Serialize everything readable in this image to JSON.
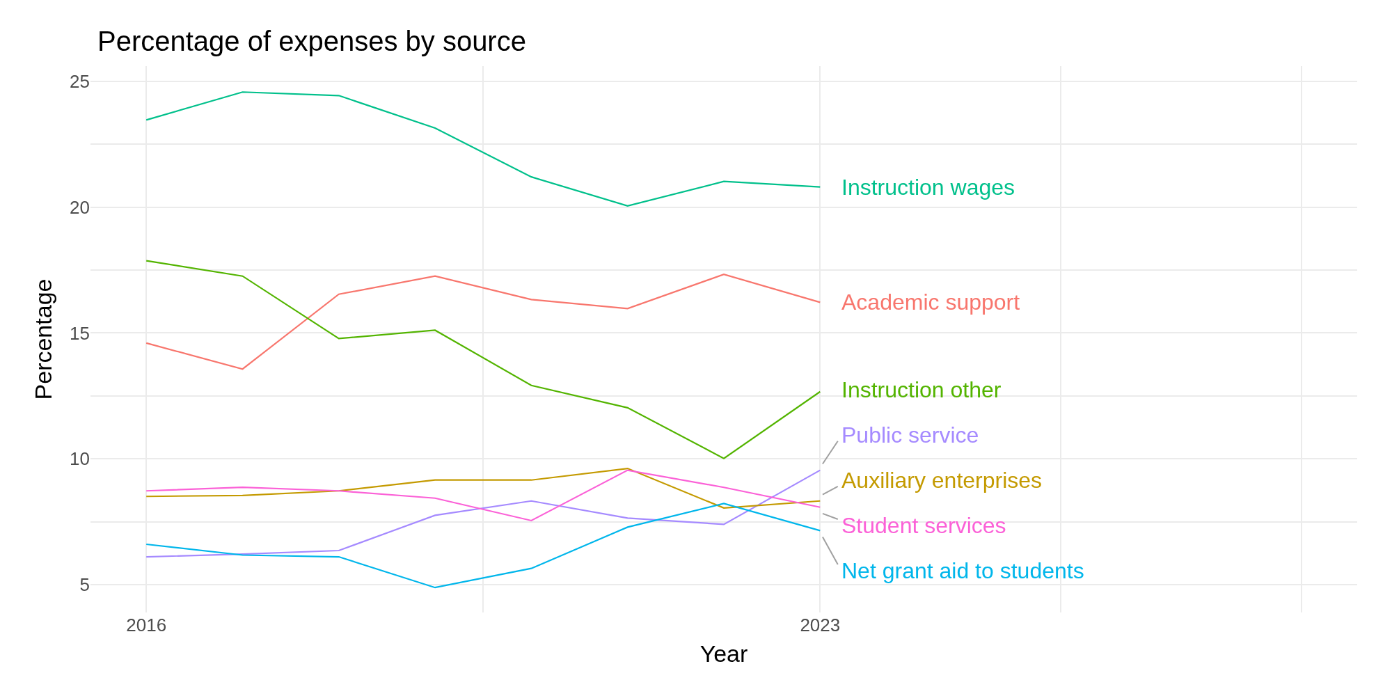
{
  "chart_data": {
    "type": "line",
    "title": "Percentage of expenses by source",
    "xlabel": "Year",
    "ylabel": "Percentage",
    "x": [
      2016,
      2017,
      2018,
      2019,
      2020,
      2021,
      2022,
      2023
    ],
    "series": [
      {
        "name": "Instruction wages",
        "color": "#00c08b",
        "values": [
          23.46,
          24.57,
          24.43,
          23.14,
          21.2,
          20.05,
          21.02,
          20.8
        ]
      },
      {
        "name": "Academic support",
        "color": "#f8766d",
        "values": [
          14.6,
          13.57,
          16.54,
          17.26,
          16.33,
          15.97,
          17.33,
          16.22
        ]
      },
      {
        "name": "Instruction other",
        "color": "#53b400",
        "values": [
          17.87,
          17.26,
          14.78,
          15.11,
          12.92,
          12.03,
          10.02,
          12.67
        ]
      },
      {
        "name": "Public service",
        "color": "#a58aff",
        "values": [
          6.11,
          6.22,
          6.36,
          7.76,
          8.33,
          7.65,
          7.4,
          9.55
        ]
      },
      {
        "name": "Auxiliary enterprises",
        "color": "#c49a00",
        "values": [
          8.51,
          8.55,
          8.73,
          9.16,
          9.16,
          9.62,
          8.05,
          8.33
        ]
      },
      {
        "name": "Student services",
        "color": "#fb61d7",
        "values": [
          8.73,
          8.87,
          8.73,
          8.44,
          7.55,
          9.55,
          8.87,
          8.08
        ]
      },
      {
        "name": "Net grant aid to students",
        "color": "#00b6eb",
        "values": [
          6.61,
          6.18,
          6.11,
          4.89,
          5.65,
          7.29,
          8.23,
          7.15
        ]
      }
    ],
    "xlim": [
      2015.42,
      2028.58
    ],
    "xticks": [
      2016,
      {
        "value": 2019.5,
        "label": null
      },
      2023,
      {
        "value": 2025.5,
        "label": null
      },
      {
        "value": 2028,
        "label": null
      }
    ],
    "ylim": [
      3.9,
      25.6
    ],
    "yticks": [
      5,
      {
        "value": 7.5,
        "label": null
      },
      10,
      {
        "value": 12.5,
        "label": null
      },
      15,
      {
        "value": 17.5,
        "label": null
      },
      20,
      {
        "value": 22.5,
        "label": null
      },
      25
    ],
    "grid": true,
    "legend": false,
    "marker": "none",
    "line_style": "solid"
  }
}
